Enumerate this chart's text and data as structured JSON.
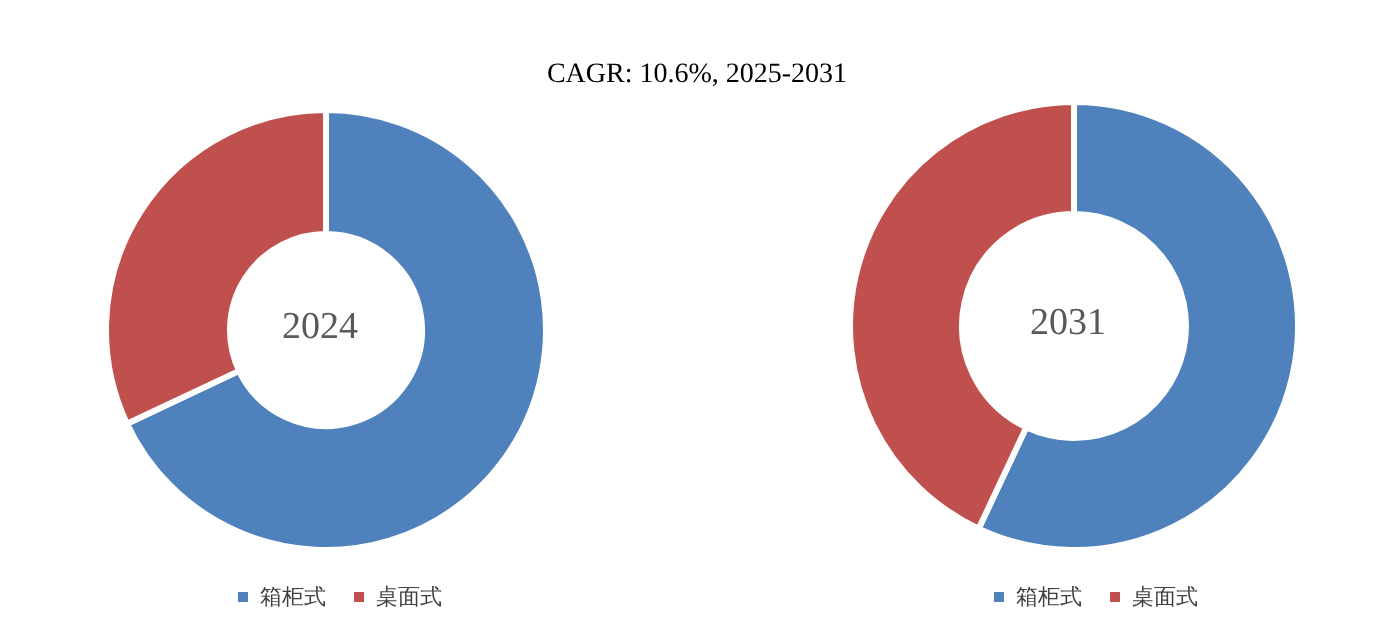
{
  "chart_data": [
    {
      "type": "donut",
      "title": "2024",
      "annotations": [
        "CAGR: 10.6%, 2025-2031"
      ],
      "categories": [
        "箱柜式",
        "桌面式"
      ],
      "values": [
        68,
        32
      ],
      "colors": [
        "#4f81bd",
        "#c0504d"
      ],
      "legend": "bottom"
    },
    {
      "type": "donut",
      "title": "2031",
      "categories": [
        "箱柜式",
        "桌面式"
      ],
      "values": [
        57,
        43
      ],
      "colors": [
        "#4f81bd",
        "#c0504d"
      ],
      "legend": "bottom"
    }
  ]
}
